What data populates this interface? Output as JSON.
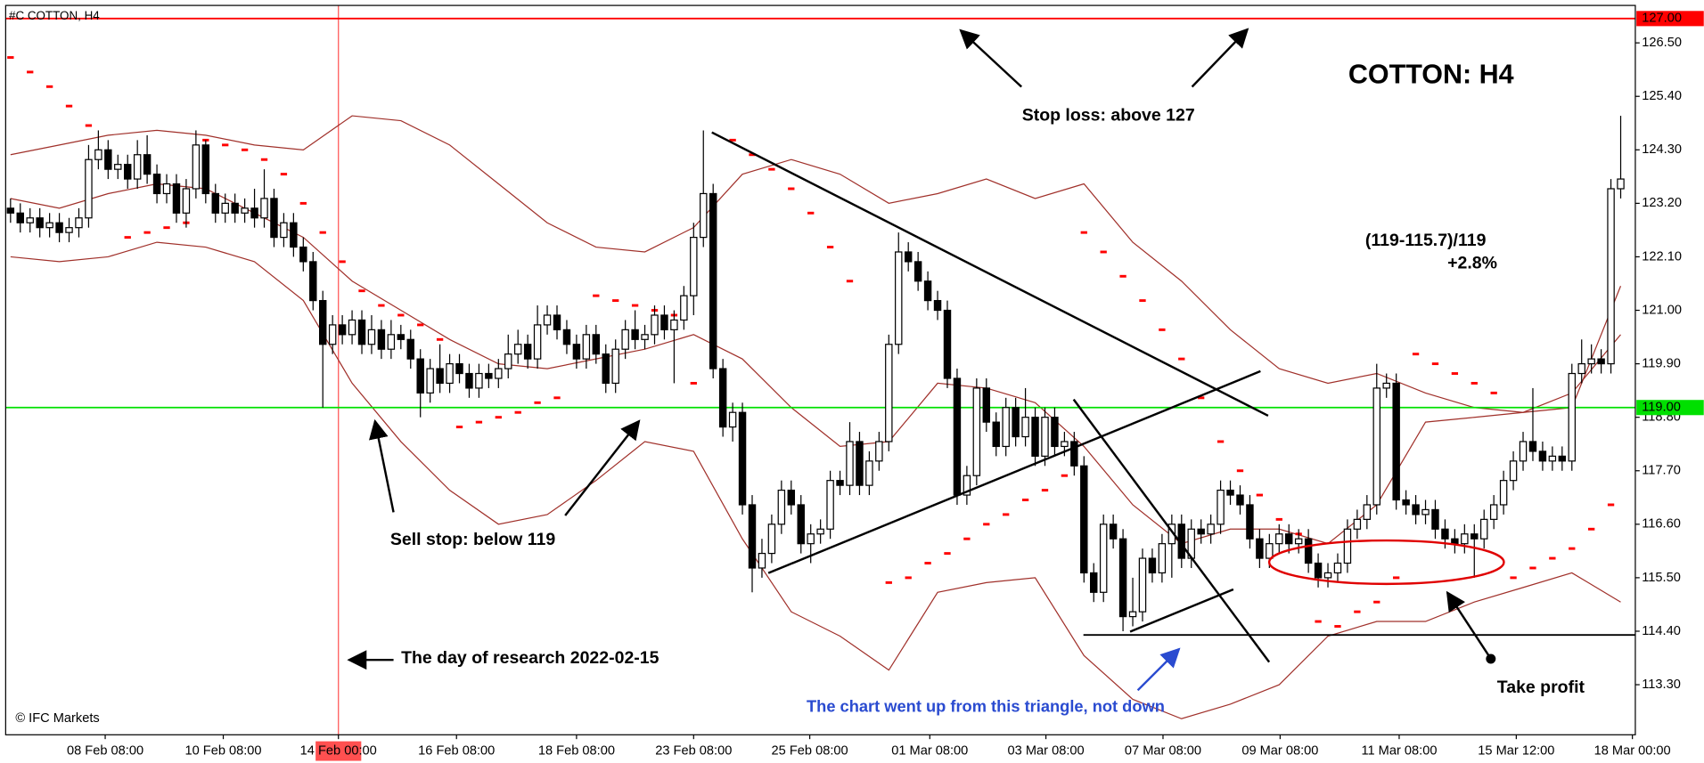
{
  "chart_data": {
    "type": "candlestick",
    "title": "#C COTTON, H4",
    "xlim": [
      -0.5,
      166.5
    ],
    "ylim": [
      112.27,
      127.27
    ],
    "xticks": [
      {
        "value": 9.7,
        "label": "08 Feb 08:00"
      },
      {
        "value": 21.8,
        "label": "10 Feb 08:00"
      },
      {
        "value": 33.6,
        "label": "14 Feb 00:00"
      },
      {
        "value": 45.7,
        "label": "16 Feb 08:00"
      },
      {
        "value": 58.0,
        "label": "18 Feb 08:00"
      },
      {
        "value": 70.0,
        "label": "23 Feb 08:00"
      },
      {
        "value": 81.9,
        "label": "25 Feb 08:00"
      },
      {
        "value": 94.2,
        "label": "01 Mar 08:00"
      },
      {
        "value": 106.1,
        "label": "03 Mar 08:00"
      },
      {
        "value": 118.1,
        "label": "07 Mar 08:00"
      },
      {
        "value": 130.1,
        "label": "09 Mar 08:00"
      },
      {
        "value": 142.3,
        "label": "11 Mar 08:00"
      },
      {
        "value": 154.3,
        "label": "15 Mar 12:00"
      },
      {
        "value": 166.2,
        "label": "18 Mar 00:00"
      }
    ],
    "yticks": [
      {
        "value": 126.5,
        "label": "126.50"
      },
      {
        "value": 125.4,
        "label": "125.40"
      },
      {
        "value": 124.3,
        "label": "124.30"
      },
      {
        "value": 123.2,
        "label": "123.20"
      },
      {
        "value": 122.1,
        "label": "122.10"
      },
      {
        "value": 121,
        "label": "121.00"
      },
      {
        "value": 119.9,
        "label": "119.90"
      },
      {
        "value": 118.8,
        "label": "118.80"
      },
      {
        "value": 117.7,
        "label": "117.70"
      },
      {
        "value": 116.6,
        "label": "116.60"
      },
      {
        "value": 115.5,
        "label": "115.50"
      },
      {
        "value": 114.4,
        "label": "114.40"
      },
      {
        "value": 113.3,
        "label": "113.30"
      }
    ],
    "up_color": "#ffffff",
    "down_color": "#000000",
    "open": [
      123.1,
      123.0,
      122.8,
      122.9,
      122.7,
      122.8,
      122.6,
      122.7,
      122.9,
      124.1,
      124.3,
      123.9,
      124.0,
      123.7,
      124.2,
      123.8,
      123.4,
      123.6,
      123.0,
      123.5,
      124.4,
      123.4,
      123.0,
      123.2,
      123.0,
      123.1,
      122.9,
      123.3,
      122.5,
      122.8,
      122.3,
      122.0,
      121.2,
      120.3,
      120.7,
      120.5,
      120.8,
      120.3,
      120.6,
      120.2,
      120.5,
      120.4,
      120.0,
      119.3,
      119.8,
      119.5,
      119.9,
      119.7,
      119.4,
      119.7,
      119.6,
      119.8,
      120.1,
      120.3,
      120.0,
      120.7,
      120.9,
      120.6,
      120.3,
      120.0,
      120.5,
      120.1,
      119.5,
      120.2,
      120.6,
      120.4,
      120.5,
      120.9,
      120.6,
      120.8,
      121.3,
      122.5,
      123.4,
      119.8,
      118.6,
      118.9,
      117.0,
      115.7,
      116.0,
      116.6,
      117.3,
      117.0,
      116.2,
      116.4,
      116.5,
      117.5,
      117.4,
      118.3,
      117.4,
      117.9,
      118.3,
      120.3,
      122.2,
      122.0,
      121.6,
      121.2,
      121.0,
      119.6,
      117.2,
      117.6,
      119.4,
      118.7,
      118.2,
      119.0,
      118.4,
      118.8,
      118.0,
      118.8,
      118.2,
      118.3,
      117.8,
      115.6,
      115.2,
      116.6,
      116.3,
      114.7,
      114.8,
      115.9,
      115.6,
      116.2,
      116.6,
      115.9,
      116.5,
      116.4,
      116.6,
      117.3,
      117.2,
      117.0,
      116.3,
      115.9,
      116.2,
      116.4,
      116.2,
      116.3,
      115.8,
      115.5,
      115.6,
      115.8,
      116.5,
      116.7,
      117.0,
      119.4,
      119.5,
      117.1,
      117.0,
      116.8,
      116.9,
      116.5,
      116.3,
      116.2,
      116.4,
      116.3,
      116.7,
      117.0,
      117.5,
      117.9,
      118.3,
      118.1,
      117.9,
      118.0,
      117.9,
      119.7,
      119.9,
      120.0,
      119.9,
      123.5
    ],
    "high": [
      123.3,
      123.2,
      123.1,
      123.1,
      123.0,
      123.0,
      122.9,
      123.1,
      124.4,
      124.7,
      124.5,
      124.2,
      124.2,
      124.5,
      124.6,
      124.0,
      123.8,
      123.8,
      123.7,
      124.7,
      124.5,
      123.6,
      123.4,
      123.4,
      123.3,
      123.5,
      123.9,
      123.5,
      123.0,
      123.0,
      122.5,
      122.2,
      121.4,
      120.9,
      120.9,
      121.0,
      121.0,
      120.9,
      120.8,
      120.8,
      120.7,
      120.6,
      120.2,
      120.0,
      120.3,
      120.1,
      120.1,
      119.9,
      119.9,
      119.9,
      120.0,
      120.5,
      120.6,
      120.5,
      121.1,
      121.1,
      121.1,
      120.8,
      120.5,
      120.7,
      120.7,
      120.3,
      120.4,
      120.8,
      121.0,
      120.7,
      121.1,
      121.1,
      121.0,
      121.5,
      122.8,
      124.7,
      123.6,
      120.0,
      119.1,
      119.1,
      117.2,
      116.3,
      116.8,
      117.5,
      117.5,
      117.2,
      116.6,
      116.7,
      117.7,
      117.7,
      118.7,
      118.5,
      118.1,
      118.5,
      120.5,
      122.6,
      122.4,
      122.2,
      121.8,
      121.4,
      121.2,
      119.8,
      117.8,
      119.6,
      119.6,
      118.9,
      119.2,
      119.2,
      119.4,
      119.0,
      119.0,
      119.0,
      118.5,
      118.5,
      118.0,
      115.8,
      116.8,
      116.8,
      116.5,
      115.5,
      116.1,
      116.1,
      116.4,
      116.8,
      116.8,
      116.7,
      116.7,
      116.8,
      117.5,
      117.5,
      117.4,
      117.2,
      116.5,
      116.4,
      116.6,
      116.6,
      116.5,
      116.5,
      116.0,
      115.8,
      116.0,
      116.7,
      116.9,
      117.2,
      119.9,
      119.7,
      119.7,
      117.3,
      117.2,
      117.1,
      117.1,
      116.7,
      116.5,
      116.6,
      116.6,
      116.9,
      117.2,
      117.7,
      118.1,
      118.5,
      119.4,
      118.3,
      118.2,
      118.2,
      119.9,
      120.4,
      120.3,
      120.2,
      123.7,
      125.0
    ],
    "low": [
      122.8,
      122.6,
      122.6,
      122.5,
      122.5,
      122.4,
      122.4,
      122.5,
      122.7,
      123.9,
      123.7,
      123.7,
      123.5,
      123.5,
      123.6,
      123.2,
      123.2,
      122.8,
      122.7,
      123.3,
      123.2,
      122.8,
      122.8,
      122.8,
      122.8,
      122.7,
      122.7,
      122.3,
      122.3,
      122.1,
      121.8,
      121.0,
      119.0,
      120.1,
      120.3,
      120.3,
      120.1,
      120.1,
      120.0,
      120.0,
      120.2,
      119.8,
      118.8,
      119.1,
      119.3,
      119.3,
      119.5,
      119.2,
      119.2,
      119.4,
      119.4,
      119.6,
      119.9,
      119.8,
      119.8,
      120.5,
      120.4,
      120.1,
      119.8,
      119.8,
      119.9,
      119.3,
      119.3,
      120.0,
      120.2,
      120.2,
      120.3,
      120.4,
      119.5,
      120.6,
      120.9,
      122.3,
      119.6,
      118.4,
      118.3,
      116.8,
      115.2,
      115.5,
      115.8,
      116.4,
      116.8,
      116.0,
      115.8,
      116.2,
      116.3,
      117.2,
      117.2,
      117.2,
      117.2,
      117.7,
      118.1,
      120.1,
      121.8,
      121.4,
      121.0,
      120.8,
      119.4,
      117.0,
      117.0,
      117.4,
      118.5,
      118.0,
      118.0,
      118.2,
      118.2,
      117.8,
      117.8,
      118.0,
      118.0,
      117.6,
      115.4,
      115.0,
      115.0,
      116.1,
      114.4,
      114.5,
      114.6,
      115.4,
      115.4,
      115.5,
      115.7,
      115.7,
      116.2,
      116.2,
      116.4,
      117.0,
      116.8,
      116.1,
      115.7,
      115.7,
      116.0,
      116.0,
      116.0,
      115.6,
      115.3,
      115.3,
      115.4,
      115.6,
      116.3,
      116.5,
      116.8,
      119.2,
      116.9,
      116.8,
      116.6,
      116.6,
      116.3,
      116.1,
      116.0,
      116.0,
      115.5,
      116.1,
      116.5,
      116.8,
      117.3,
      117.7,
      117.9,
      117.7,
      117.7,
      117.7,
      117.7,
      119.5,
      119.7,
      119.7,
      119.7,
      123.3
    ],
    "close": [
      123.0,
      122.8,
      122.9,
      122.7,
      122.8,
      122.6,
      122.7,
      122.9,
      124.1,
      124.3,
      123.9,
      124.0,
      123.7,
      124.2,
      123.8,
      123.4,
      123.6,
      123.0,
      123.5,
      124.4,
      123.4,
      123.0,
      123.2,
      123.0,
      123.1,
      122.9,
      123.3,
      122.5,
      122.8,
      122.3,
      122.0,
      121.2,
      120.3,
      120.7,
      120.5,
      120.8,
      120.3,
      120.6,
      120.2,
      120.5,
      120.4,
      120.0,
      119.3,
      119.8,
      119.5,
      119.9,
      119.7,
      119.4,
      119.7,
      119.6,
      119.8,
      120.1,
      120.3,
      120.0,
      120.7,
      120.9,
      120.6,
      120.3,
      120.0,
      120.5,
      120.1,
      119.5,
      120.2,
      120.6,
      120.4,
      120.5,
      120.9,
      120.6,
      120.8,
      121.3,
      122.5,
      123.4,
      119.8,
      118.6,
      118.9,
      117.0,
      115.7,
      116.0,
      116.6,
      117.3,
      117.0,
      116.2,
      116.4,
      116.5,
      117.5,
      117.4,
      118.3,
      117.4,
      117.9,
      118.3,
      120.3,
      122.2,
      122.0,
      121.6,
      121.2,
      121.0,
      119.6,
      117.2,
      117.6,
      119.4,
      118.7,
      118.2,
      119.0,
      118.4,
      118.8,
      118.0,
      118.8,
      118.2,
      118.3,
      117.8,
      115.6,
      115.2,
      116.6,
      116.3,
      114.7,
      114.8,
      115.9,
      115.6,
      116.2,
      116.6,
      115.9,
      116.5,
      116.4,
      116.6,
      117.3,
      117.2,
      117.0,
      116.3,
      115.9,
      116.2,
      116.4,
      116.2,
      116.3,
      115.8,
      115.5,
      115.6,
      115.8,
      116.5,
      116.7,
      117.0,
      119.4,
      119.5,
      117.1,
      117.0,
      116.8,
      116.9,
      116.5,
      116.3,
      116.2,
      116.4,
      116.3,
      116.7,
      117.0,
      117.5,
      117.9,
      118.3,
      118.1,
      117.9,
      118.0,
      117.9,
      119.7,
      119.9,
      120.0,
      119.9,
      123.5,
      123.7
    ],
    "overlays": [
      {
        "type": "line",
        "color": "#a0302a",
        "x": [
          0,
          5,
          10,
          15,
          20,
          25,
          30,
          35,
          40,
          45,
          50,
          55,
          60,
          65,
          70,
          75,
          80,
          85,
          90,
          95,
          100,
          105,
          110,
          115,
          120,
          125,
          130,
          135,
          140,
          145,
          150,
          155,
          160,
          165
        ],
        "values": [
          124.2,
          124.4,
          124.6,
          124.7,
          124.6,
          124.4,
          124.3,
          125.0,
          124.9,
          124.4,
          123.6,
          122.8,
          122.3,
          122.2,
          122.7,
          123.8,
          124.1,
          123.8,
          123.2,
          123.4,
          123.7,
          123.3,
          123.6,
          122.4,
          121.6,
          120.6,
          119.8,
          119.5,
          119.7,
          119.3,
          119.0,
          118.9,
          119.0,
          121.5
        ]
      },
      {
        "type": "line",
        "color": "#a0302a",
        "x": [
          0,
          5,
          10,
          15,
          20,
          25,
          30,
          35,
          40,
          45,
          50,
          55,
          60,
          65,
          70,
          75,
          80,
          85,
          90,
          95,
          100,
          105,
          110,
          115,
          120,
          125,
          130,
          135,
          140,
          145,
          150,
          155,
          160,
          165
        ],
        "values": [
          123.3,
          123.1,
          123.4,
          123.6,
          123.5,
          123.0,
          122.5,
          121.6,
          121.0,
          120.4,
          119.9,
          119.8,
          120.0,
          120.2,
          120.5,
          120.0,
          119.0,
          118.2,
          118.3,
          119.5,
          119.4,
          119.1,
          118.2,
          117.0,
          116.2,
          116.5,
          116.5,
          116.2,
          117.0,
          118.7,
          118.8,
          118.9,
          119.3,
          120.5
        ]
      },
      {
        "type": "line",
        "color": "#a0302a",
        "x": [
          0,
          5,
          10,
          15,
          20,
          25,
          30,
          35,
          40,
          45,
          50,
          55,
          60,
          65,
          70,
          75,
          80,
          85,
          90,
          95,
          100,
          105,
          110,
          115,
          120,
          125,
          130,
          135,
          140,
          145,
          150,
          155,
          160,
          165
        ],
        "values": [
          122.1,
          122.0,
          122.1,
          122.4,
          122.3,
          122.0,
          121.2,
          119.5,
          118.3,
          117.3,
          116.6,
          116.8,
          117.5,
          118.3,
          118.1,
          116.3,
          114.8,
          114.3,
          113.6,
          115.2,
          115.4,
          115.5,
          113.9,
          113.0,
          112.6,
          112.9,
          113.3,
          114.3,
          114.6,
          114.6,
          115.0,
          115.3,
          115.6,
          115.0
        ]
      },
      {
        "type": "dots",
        "color": "#ff0000",
        "x": [
          0,
          2,
          4,
          6,
          8,
          10,
          12,
          14,
          16,
          18,
          20,
          22,
          24,
          26,
          28,
          30,
          32,
          34,
          36,
          38,
          40,
          42,
          44,
          46,
          48,
          50,
          52,
          54,
          56,
          58,
          60,
          62,
          64,
          66,
          68,
          70,
          72,
          74,
          76,
          78,
          80,
          82,
          84,
          86,
          88,
          90,
          92,
          94,
          96,
          98,
          100,
          102,
          104,
          106,
          108,
          110,
          112,
          114,
          116,
          118,
          120,
          122,
          124,
          126,
          128,
          130,
          132,
          134,
          136,
          138,
          140,
          142,
          144,
          146,
          148,
          150,
          152,
          154,
          156,
          158,
          160,
          162,
          164
        ],
        "values": [
          126.2,
          125.9,
          125.6,
          125.2,
          124.8,
          null,
          122.5,
          122.6,
          122.7,
          122.8,
          124.5,
          124.4,
          124.3,
          124.1,
          123.8,
          123.2,
          122.6,
          122.0,
          121.4,
          121.1,
          120.9,
          120.7,
          120.4,
          118.6,
          118.7,
          118.8,
          118.9,
          119.1,
          119.2,
          null,
          121.3,
          121.2,
          121.1,
          121.0,
          120.9,
          119.5,
          null,
          124.5,
          124.2,
          123.9,
          123.5,
          123.0,
          122.3,
          121.6,
          null,
          115.4,
          115.5,
          115.8,
          116.0,
          116.3,
          116.6,
          116.8,
          117.1,
          117.3,
          117.6,
          122.6,
          122.2,
          121.7,
          121.2,
          120.6,
          120.0,
          119.2,
          118.3,
          117.7,
          117.2,
          116.7,
          116.4,
          114.6,
          114.5,
          114.8,
          115.0,
          115.5,
          120.1,
          119.9,
          119.7,
          119.5,
          119.3,
          115.5,
          115.7,
          115.9,
          116.1,
          116.5,
          117.0
        ]
      }
    ],
    "hlines": [
      {
        "value": 127,
        "label": "127.00",
        "color": "#ff0000"
      },
      {
        "value": 119,
        "label": "119.00",
        "color": "#00e000"
      }
    ],
    "vline": {
      "value": 33.6,
      "color": "#ff5050"
    },
    "annotations": [
      "COTTON: H4",
      "Stop loss: above 127",
      "(119-115.7)/119",
      "+2.8%",
      "Sell stop: below 119",
      "The day of research 2022-02-15",
      "The chart went up from this triangle, not down",
      "Take profit"
    ],
    "copyright": "© IFC Markets"
  }
}
